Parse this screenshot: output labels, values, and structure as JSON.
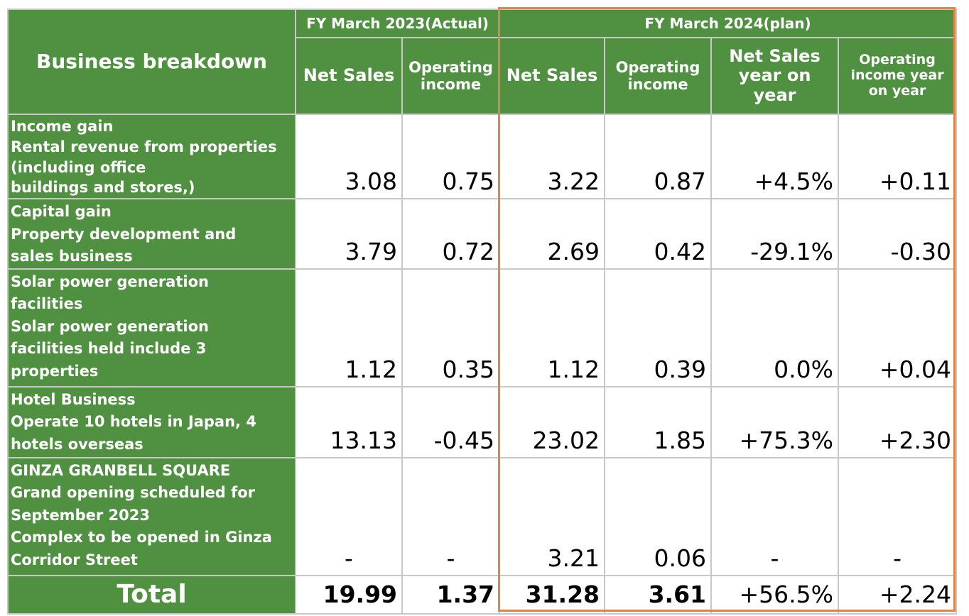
{
  "header": {
    "business_breakdown": "Business breakdown",
    "fy2023": "FY March 2023(Actual)",
    "fy2024": "FY March 2024(plan)",
    "net_sales": "Net Sales",
    "operating_income": [
      "Operating",
      "income"
    ],
    "net_sales_yoy": [
      "Net Sales",
      "year on",
      "year"
    ],
    "operating_income_yoy": [
      "Operating",
      "income year",
      "on year"
    ]
  },
  "rows": [
    {
      "label_lines": [
        "Income gain",
        "Rental revenue from properties",
        "(including office",
        "buildings and stores,)"
      ],
      "values": [
        "3.08",
        "0.75",
        "3.22",
        "0.87",
        "+4.5%",
        "+0.11"
      ]
    },
    {
      "label_lines": [
        "Capital gain",
        "Property development and",
        "sales business"
      ],
      "values": [
        "3.79",
        "0.72",
        "2.69",
        "0.42",
        "-29.1%",
        "-0.30"
      ]
    },
    {
      "label_lines": [
        "Solar power generation",
        "facilities",
        "Solar power generation",
        "facilities held include 3",
        "properties"
      ],
      "values": [
        "1.12",
        "0.35",
        "1.12",
        "0.39",
        "0.0%",
        "+0.04"
      ]
    },
    {
      "label_lines": [
        "Hotel Business",
        "Operate 10 hotels in Japan, 4",
        "hotels overseas"
      ],
      "values": [
        "13.13",
        "-0.45",
        "23.02",
        "1.85",
        "+75.3%",
        "+2.30"
      ]
    },
    {
      "label_lines": [
        "GINZA  GRANBELL SQUARE",
        "Grand opening scheduled for",
        "September 2023",
        "Complex to be opened in Ginza",
        "Corridor Street"
      ],
      "values": [
        "-",
        "-",
        "3.21",
        "0.06",
        "-",
        "-"
      ]
    }
  ],
  "total": {
    "label": "Total",
    "values": [
      "19.99",
      "1.37",
      "31.28",
      "3.61",
      "+56.5%",
      "+2.24"
    ]
  },
  "colors": {
    "header_green": "#4f9141",
    "grid": "#c8c8c8",
    "plan_highlight": "#e0844a"
  }
}
